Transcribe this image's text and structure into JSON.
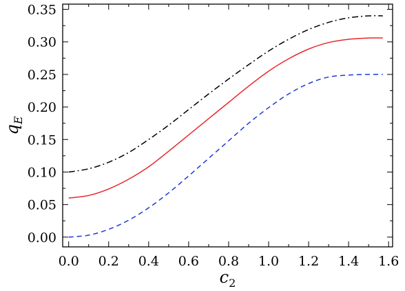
{
  "chart_data": {
    "type": "line",
    "title": "",
    "xlabel": {
      "base": "c",
      "sub": "2"
    },
    "ylabel": {
      "base": "q",
      "sub": "E"
    },
    "xlim": [
      -0.03,
      1.62
    ],
    "ylim": [
      -0.015,
      0.358
    ],
    "xticks": [
      "0.0",
      "0.2",
      "0.4",
      "0.6",
      "0.8",
      "1.0",
      "1.2",
      "1.4",
      "1.6"
    ],
    "yticks": [
      "0.00",
      "0.05",
      "0.10",
      "0.15",
      "0.20",
      "0.25",
      "0.30",
      "0.35"
    ],
    "grid": false,
    "legend": "none",
    "series": [
      {
        "color": "#000000",
        "dash": "dashdot",
        "x": [
          0.0,
          0.1,
          0.2,
          0.3,
          0.4,
          0.5,
          0.6,
          0.7,
          0.8,
          0.9,
          1.0,
          1.1,
          1.2,
          1.3,
          1.4,
          1.5,
          1.571
        ],
        "y": [
          0.1,
          0.105,
          0.115,
          0.13,
          0.15,
          0.172,
          0.196,
          0.22,
          0.243,
          0.265,
          0.286,
          0.304,
          0.319,
          0.33,
          0.337,
          0.34,
          0.34
        ]
      },
      {
        "color": "#e8262a",
        "dash": "solid",
        "x": [
          0.0,
          0.1,
          0.2,
          0.3,
          0.4,
          0.5,
          0.6,
          0.7,
          0.8,
          0.9,
          1.0,
          1.1,
          1.2,
          1.3,
          1.4,
          1.5,
          1.571
        ],
        "y": [
          0.06,
          0.064,
          0.074,
          0.089,
          0.108,
          0.132,
          0.157,
          0.182,
          0.207,
          0.232,
          0.255,
          0.274,
          0.289,
          0.299,
          0.304,
          0.306,
          0.306
        ]
      },
      {
        "color": "#1f36d6",
        "dash": "dashed",
        "x": [
          0.0,
          0.1,
          0.2,
          0.3,
          0.4,
          0.5,
          0.6,
          0.7,
          0.8,
          0.9,
          1.0,
          1.1,
          1.2,
          1.3,
          1.4,
          1.5,
          1.571
        ],
        "y": [
          0.0,
          0.003,
          0.012,
          0.026,
          0.045,
          0.068,
          0.094,
          0.121,
          0.148,
          0.175,
          0.199,
          0.22,
          0.236,
          0.246,
          0.249,
          0.25,
          0.25
        ]
      }
    ]
  }
}
